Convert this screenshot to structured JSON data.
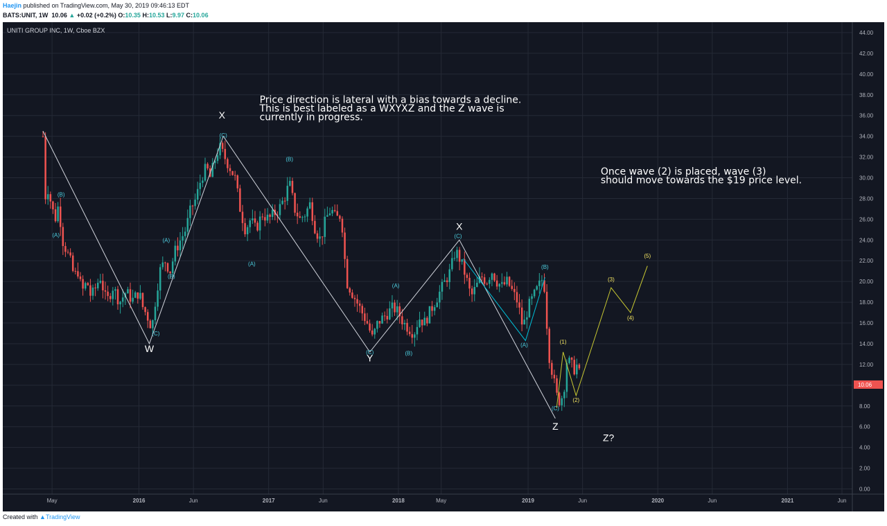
{
  "header": {
    "author": "Haejin",
    "published": "published on TradingView.com, May 30, 2019 09:46:13 EDT",
    "ticker": "BATS:UNIT, 1W",
    "last": "10.06",
    "change_arrow": "▲",
    "change": "+0.02 (+0.2%)",
    "o_label": "O:",
    "o_value": "10.35",
    "h_label": "H:",
    "h_value": "10.53",
    "l_label": "L:",
    "l_value": "9.97",
    "c_label": "C:",
    "c_value": "10.06"
  },
  "footer": {
    "created_with": "Created with",
    "brand": "TradingView"
  },
  "colors": {
    "background": "#131722",
    "grid": "#252a36",
    "up": "#26a69a",
    "down": "#ef5350",
    "wave_line": "#d1d4dc",
    "cyan_line": "#00bcd4",
    "yellow_line": "#c8c832",
    "cyan_label": "#4dd0e1",
    "yellow_label": "#f5e663",
    "price_tag": "#ef5350"
  },
  "chart_data": {
    "type": "candlestick",
    "title": "UNITI GROUP INC, 1W, Cboe BZX",
    "ylim": [
      -0.5,
      45
    ],
    "y_ticks": [
      0,
      2,
      4,
      6,
      8,
      10,
      12,
      14,
      16,
      18,
      20,
      22,
      24,
      26,
      28,
      30,
      32,
      34,
      36,
      38,
      40,
      42,
      44
    ],
    "y_tick_labels": [
      "0.00",
      "2.00",
      "4.00",
      "6.00",
      "8.00",
      "10.00",
      "12.00",
      "14.00",
      "16.00",
      "18.00",
      "20.00",
      "22.00",
      "24.00",
      "26.00",
      "28.00",
      "30.00",
      "32.00",
      "34.00",
      "36.00",
      "38.00",
      "40.00",
      "42.00",
      "44.00"
    ],
    "x_ticks": [
      {
        "t": 2015.33,
        "label": "May"
      },
      {
        "t": 2016.0,
        "label": "2016"
      },
      {
        "t": 2016.42,
        "label": "Jun"
      },
      {
        "t": 2017.0,
        "label": "2017"
      },
      {
        "t": 2017.42,
        "label": "Jun"
      },
      {
        "t": 2018.0,
        "label": "2018"
      },
      {
        "t": 2018.33,
        "label": "May"
      },
      {
        "t": 2019.0,
        "label": "2019"
      },
      {
        "t": 2019.42,
        "label": "Jun"
      },
      {
        "t": 2020.0,
        "label": "2020"
      },
      {
        "t": 2020.42,
        "label": "Jun"
      },
      {
        "t": 2021.0,
        "label": "2021"
      },
      {
        "t": 2021.42,
        "label": "Jun"
      }
    ],
    "xlim": [
      2014.95,
      2021.5
    ],
    "last_price": 10.06,
    "last_price_label": "10.06",
    "price_path": [
      [
        2015.26,
        34.0
      ],
      [
        2015.28,
        28
      ],
      [
        2015.3,
        29
      ],
      [
        2015.33,
        27
      ],
      [
        2015.36,
        26
      ],
      [
        2015.38,
        27.5
      ],
      [
        2015.41,
        24
      ],
      [
        2015.44,
        23
      ],
      [
        2015.47,
        22
      ],
      [
        2015.5,
        20.5
      ],
      [
        2015.53,
        21
      ],
      [
        2015.56,
        19
      ],
      [
        2015.6,
        20
      ],
      [
        2015.63,
        18.5
      ],
      [
        2015.67,
        19.5
      ],
      [
        2015.7,
        20.5
      ],
      [
        2015.75,
        18
      ],
      [
        2015.8,
        19.5
      ],
      [
        2015.85,
        18
      ],
      [
        2015.9,
        19
      ],
      [
        2015.95,
        18.2
      ],
      [
        2016.0,
        19
      ],
      [
        2016.03,
        17.5
      ],
      [
        2016.06,
        16.8
      ],
      [
        2016.1,
        15.5
      ],
      [
        2016.13,
        18.5
      ],
      [
        2016.16,
        21
      ],
      [
        2016.2,
        22
      ],
      [
        2016.24,
        21
      ],
      [
        2016.28,
        23
      ],
      [
        2016.32,
        24
      ],
      [
        2016.36,
        25
      ],
      [
        2016.4,
        27
      ],
      [
        2016.44,
        28
      ],
      [
        2016.48,
        30
      ],
      [
        2016.52,
        31
      ],
      [
        2016.55,
        30
      ],
      [
        2016.58,
        31.5
      ],
      [
        2016.62,
        33
      ],
      [
        2016.66,
        32
      ],
      [
        2016.7,
        31
      ],
      [
        2016.74,
        30
      ],
      [
        2016.78,
        27
      ],
      [
        2016.82,
        25
      ],
      [
        2016.86,
        26
      ],
      [
        2016.9,
        25
      ],
      [
        2016.95,
        26.5
      ],
      [
        2017.0,
        26
      ],
      [
        2017.04,
        26.5
      ],
      [
        2017.08,
        27
      ],
      [
        2017.12,
        28
      ],
      [
        2017.16,
        29.5
      ],
      [
        2017.2,
        27
      ],
      [
        2017.24,
        26
      ],
      [
        2017.28,
        26.5
      ],
      [
        2017.32,
        27.5
      ],
      [
        2017.36,
        25
      ],
      [
        2017.4,
        24
      ],
      [
        2017.44,
        26
      ],
      [
        2017.48,
        27
      ],
      [
        2017.52,
        26
      ],
      [
        2017.56,
        26.5
      ],
      [
        2017.6,
        20
      ],
      [
        2017.64,
        19
      ],
      [
        2017.68,
        18
      ],
      [
        2017.72,
        17
      ],
      [
        2017.76,
        16
      ],
      [
        2017.8,
        14.5
      ],
      [
        2017.84,
        16
      ],
      [
        2017.88,
        16.5
      ],
      [
        2017.92,
        17
      ],
      [
        2017.96,
        17.5
      ],
      [
        2018.0,
        17
      ],
      [
        2018.04,
        16
      ],
      [
        2018.08,
        15.5
      ],
      [
        2018.12,
        15
      ],
      [
        2018.16,
        16.5
      ],
      [
        2018.2,
        16
      ],
      [
        2018.24,
        17
      ],
      [
        2018.28,
        18
      ],
      [
        2018.32,
        19
      ],
      [
        2018.36,
        20
      ],
      [
        2018.4,
        21
      ],
      [
        2018.44,
        23
      ],
      [
        2018.48,
        22
      ],
      [
        2018.52,
        20.5
      ],
      [
        2018.56,
        18.5
      ],
      [
        2018.6,
        19.5
      ],
      [
        2018.64,
        20.5
      ],
      [
        2018.68,
        20
      ],
      [
        2018.72,
        21
      ],
      [
        2018.76,
        20
      ],
      [
        2018.8,
        19.5
      ],
      [
        2018.84,
        20
      ],
      [
        2018.88,
        19
      ],
      [
        2018.92,
        18
      ],
      [
        2018.96,
        15.5
      ],
      [
        2019.0,
        17.5
      ],
      [
        2019.04,
        18.5
      ],
      [
        2019.08,
        19.5
      ],
      [
        2019.12,
        20.5
      ],
      [
        2019.16,
        13
      ],
      [
        2019.19,
        11
      ],
      [
        2019.22,
        9
      ],
      [
        2019.25,
        8.3
      ],
      [
        2019.28,
        10
      ],
      [
        2019.3,
        12.5
      ],
      [
        2019.33,
        12
      ],
      [
        2019.36,
        11.5
      ],
      [
        2019.38,
        12
      ],
      [
        2019.4,
        10.8
      ],
      [
        2019.41,
        10.06
      ]
    ]
  },
  "waves": {
    "white": [
      [
        2015.26,
        34.5
      ],
      [
        2016.08,
        14.0
      ],
      [
        2016.65,
        34.0
      ],
      [
        2017.78,
        13.2
      ],
      [
        2018.47,
        24.0
      ],
      [
        2019.21,
        6.8
      ]
    ],
    "cyan": [
      [
        2018.5,
        22.2
      ],
      [
        2018.98,
        14.3
      ],
      [
        2019.13,
        20.4
      ]
    ],
    "yellow": [
      [
        2019.22,
        7.8
      ],
      [
        2019.27,
        13.2
      ],
      [
        2019.37,
        9.0
      ],
      [
        2019.64,
        19.4
      ],
      [
        2019.79,
        17.0
      ],
      [
        2019.92,
        21.5
      ]
    ]
  },
  "labels": {
    "big": [
      {
        "text": "W",
        "t": 2016.08,
        "p": 13.2
      },
      {
        "text": "X",
        "t": 2016.64,
        "p": 35.7
      },
      {
        "text": "Y",
        "t": 2017.78,
        "p": 12.3
      },
      {
        "text": "X",
        "t": 2018.47,
        "p": 25.0
      },
      {
        "text": "Z",
        "t": 2019.21,
        "p": 5.7
      },
      {
        "text": "Z?",
        "t": 2019.62,
        "p": 4.6
      }
    ],
    "cyan": [
      {
        "text": "(B)",
        "t": 2015.4,
        "p": 28.2
      },
      {
        "text": "(A)",
        "t": 2015.36,
        "p": 24.3
      },
      {
        "text": "(C)",
        "t": 2016.13,
        "p": 14.8
      },
      {
        "text": "(A)",
        "t": 2016.21,
        "p": 23.8
      },
      {
        "text": "(B)",
        "t": 2016.25,
        "p": 20.3
      },
      {
        "text": "(C)",
        "t": 2016.65,
        "p": 33.9
      },
      {
        "text": "(A)",
        "t": 2016.87,
        "p": 21.5
      },
      {
        "text": "(B)",
        "t": 2017.16,
        "p": 31.6
      },
      {
        "text": "(C)",
        "t": 2017.78,
        "p": 13.0
      },
      {
        "text": "(A)",
        "t": 2017.98,
        "p": 19.4
      },
      {
        "text": "(B)",
        "t": 2018.08,
        "p": 12.9
      },
      {
        "text": "(C)",
        "t": 2018.46,
        "p": 24.2
      },
      {
        "text": "(A)",
        "t": 2018.97,
        "p": 13.7
      },
      {
        "text": "(B)",
        "t": 2019.13,
        "p": 21.2
      },
      {
        "text": "(C)",
        "t": 2019.21,
        "p": 7.6
      }
    ],
    "yellow": [
      {
        "text": "(1)",
        "t": 2019.27,
        "p": 14.0
      },
      {
        "text": "(2)",
        "t": 2019.37,
        "p": 8.4
      },
      {
        "text": "(3)",
        "t": 2019.64,
        "p": 20.0
      },
      {
        "text": "(4)",
        "t": 2019.79,
        "p": 16.3
      },
      {
        "text": "(5)",
        "t": 2019.92,
        "p": 22.3
      }
    ]
  },
  "annotations": [
    {
      "lines": [
        "Price direction is lateral with a bias towards a decline.",
        "This is best labeled as a WXYXZ and the Z wave is",
        "currently in progress."
      ],
      "t": 2016.93,
      "p": 37.2
    },
    {
      "lines": [
        "Once wave (2) is placed, wave (3)",
        "should move towards the $19 price level."
      ],
      "t": 2019.56,
      "p": 30.3
    }
  ]
}
